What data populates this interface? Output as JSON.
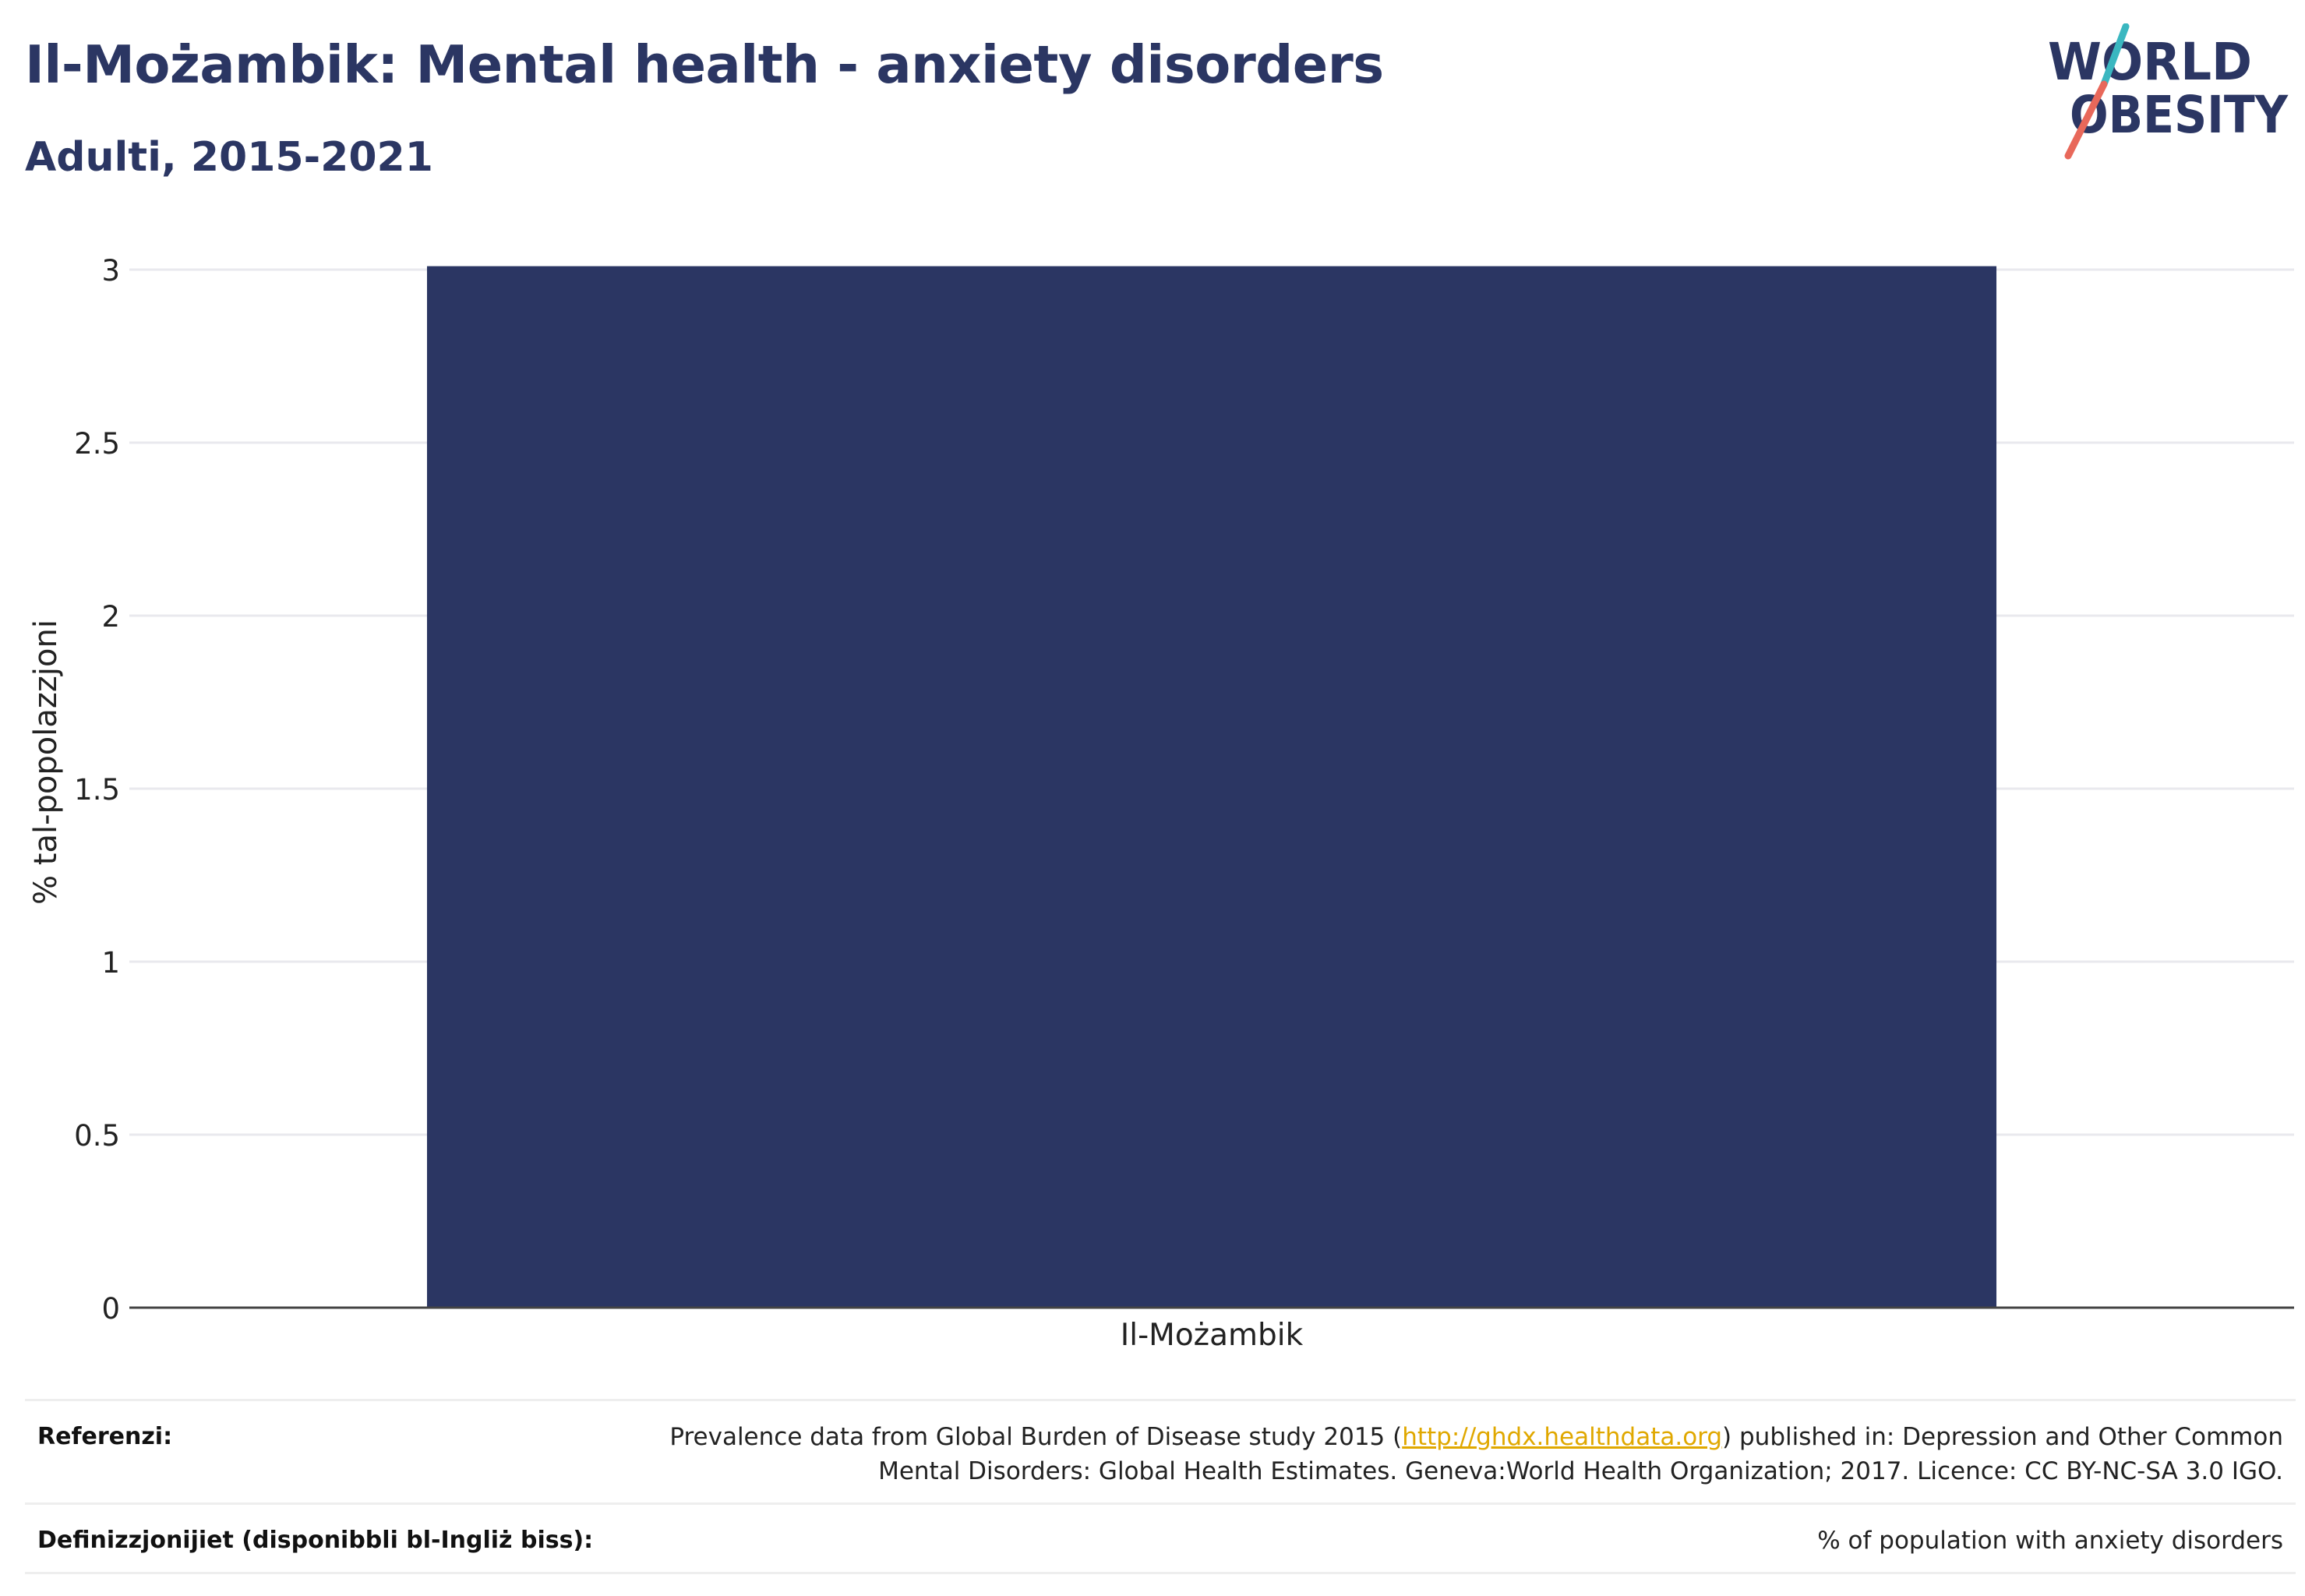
{
  "header": {
    "title": "Il-Możambik: Mental health - anxiety disorders",
    "subtitle": "Adulti, 2015-2021"
  },
  "logo": {
    "line1": "WORLD",
    "line2": "OBESITY",
    "colors": {
      "text": "#2b3663",
      "slash_top": "#3ab7c0",
      "slash_bottom": "#e8685a"
    }
  },
  "chart_data": {
    "type": "bar",
    "categories": [
      "Il-Możambik"
    ],
    "values": [
      3.01
    ],
    "ylabel": "% tal-popolazzjoni",
    "ylim": [
      0,
      3
    ],
    "yticks": [
      0,
      0.5,
      1,
      1.5,
      2,
      2.5,
      3
    ],
    "ytick_labels": [
      "0",
      "0.5",
      "1",
      "1.5",
      "2",
      "2.5",
      "3"
    ],
    "grid": true,
    "bar_color": "#2b3663"
  },
  "footer": {
    "references_label": "Referenzi:",
    "references_text_before": "Prevalence data from Global Burden of Disease study 2015 (",
    "references_link": "http://ghdx.healthdata.org",
    "references_text_after": ") published in: Depression and Other Common Mental Disorders: Global Health Estimates. Geneva:World Health Organization; 2017. Licence: CC BY-NC-SA 3.0 IGO.",
    "definitions_label": "Definizzjonijiet (disponibbli bl-Ingliż biss):",
    "definitions_text": "% of population with anxiety disorders"
  }
}
